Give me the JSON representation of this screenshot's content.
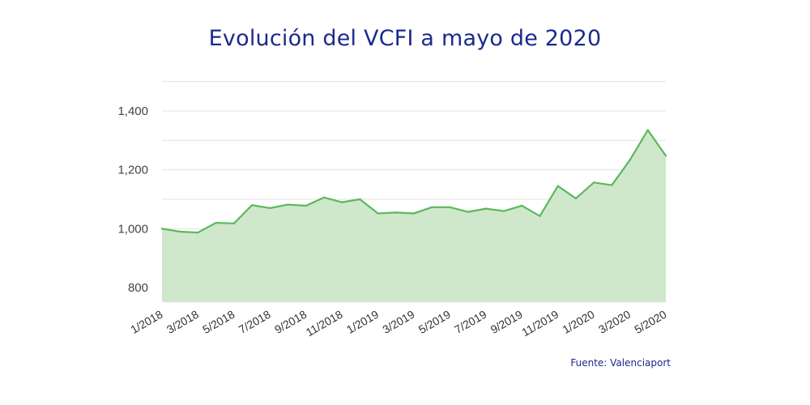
{
  "title": "Evolución del VCFI a mayo de 2020",
  "source": "Fuente: Valenciaport",
  "colors": {
    "title": "#1b2a8c",
    "line": "#5cb85c",
    "area": "#cfe8cc",
    "grid": "#e3e3e3"
  },
  "chart_data": {
    "type": "area",
    "title": "Evolución del VCFI a mayo de 2020",
    "xlabel": "",
    "ylabel": "",
    "ylim": [
      750,
      1400
    ],
    "yticks": [
      800,
      1000,
      1200,
      1400
    ],
    "ytick_labels": [
      "800",
      "1,000",
      "1,200",
      "1,400"
    ],
    "xtick_labels": [
      "1/2018",
      "3/2018",
      "5/2018",
      "7/2018",
      "9/2018",
      "11/2018",
      "1/2019",
      "3/2019",
      "5/2019",
      "7/2019",
      "9/2019",
      "11/2019",
      "1/2020",
      "3/2020",
      "5/2020"
    ],
    "grid": true,
    "legend": "none",
    "x": [
      "1/2018",
      "2/2018",
      "3/2018",
      "4/2018",
      "5/2018",
      "6/2018",
      "7/2018",
      "8/2018",
      "9/2018",
      "10/2018",
      "11/2018",
      "12/2018",
      "1/2019",
      "2/2019",
      "3/2019",
      "4/2019",
      "5/2019",
      "6/2019",
      "7/2019",
      "8/2019",
      "9/2019",
      "10/2019",
      "11/2019",
      "12/2019",
      "1/2020",
      "2/2020",
      "3/2020",
      "4/2020",
      "5/2020"
    ],
    "series": [
      {
        "values": [
          1000,
          990,
          987,
          1020,
          1018,
          1080,
          1070,
          1082,
          1078,
          1106,
          1090,
          1100,
          1052,
          1055,
          1052,
          1073,
          1073,
          1057,
          1068,
          1060,
          1078,
          1043,
          1145,
          1103,
          1157,
          1148,
          1233,
          1335,
          1248
        ]
      }
    ]
  }
}
